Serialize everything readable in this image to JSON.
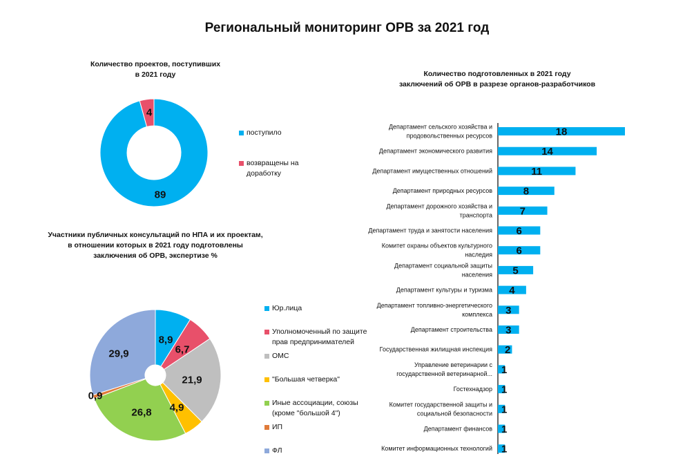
{
  "title": "Региональный мониторинг  ОРВ  за 2021 год",
  "chart_data": [
    {
      "type": "pie",
      "title_lines": [
        "Количество  проектов,  поступивших",
        "в 2021 году"
      ],
      "donut": true,
      "labels": [
        "поступило",
        "возвращены на доработку"
      ],
      "legend_lines": [
        [
          "поступило"
        ],
        [
          "возвращены на",
          "доработку"
        ]
      ],
      "values": [
        89,
        4
      ],
      "value_labels": [
        "89",
        "4"
      ],
      "colors": [
        "#00B0F0",
        "#E8506A"
      ],
      "legend": "right"
    },
    {
      "type": "bar",
      "orientation": "horizontal",
      "title_lines": [
        "Количество  подготовленных  в 2021 году",
        "заключений  об ОРВ в разрезе органов-разработчиков"
      ],
      "categories": [
        [
          "Департамент сельского хозяйства и",
          "продовольственных ресурсов"
        ],
        [
          "Департамент экономического развития"
        ],
        [
          "Департамент имущественных отношений"
        ],
        [
          "Департамент природных ресурсов"
        ],
        [
          "Департамент дорожного хозяйства и",
          "транспорта"
        ],
        [
          "Департамент труда и занятости населения"
        ],
        [
          "Комитет охраны объектов культурного",
          "наследия"
        ],
        [
          "Департамент социальной защиты",
          "населения"
        ],
        [
          "Департамент культуры и туризма"
        ],
        [
          "Департамент топливно-энергетического",
          "комплекса"
        ],
        [
          "Департамент строительства"
        ],
        [
          "Государственная жилищная инспекция"
        ],
        [
          "Управление ветеринарии с",
          "государственной ветеринарной..."
        ],
        [
          "Гостехнадзор"
        ],
        [
          "Комитет государственной защиты и",
          "социальной безопасности"
        ],
        [
          "Департамент финансов"
        ],
        [
          "Комитет информационных технологий"
        ]
      ],
      "values": [
        18,
        14,
        11,
        8,
        7,
        6,
        6,
        5,
        4,
        3,
        3,
        2,
        1,
        1,
        1,
        1,
        1
      ],
      "color": "#00B0F0",
      "xlim": [
        0,
        18
      ]
    },
    {
      "type": "pie",
      "title_lines": [
        "Участники  публичных  консультаций  по НПА и их проектам,",
        "в отношении которых  в 2021 году подготовлены",
        "заключения об ОРВ, экспертизе %"
      ],
      "donut": true,
      "labels": [
        "Юр.лица",
        "Уполномоченный по защите прав предпринимателей",
        "ОМС",
        "\"Большая четверка\"",
        "Иные ассоциации, союзы (кроме \"большой 4\")",
        "ИП",
        "ФЛ"
      ],
      "legend_lines": [
        [
          "Юр.лица"
        ],
        [
          "Уполномоченный по защите",
          "прав предпринимателей"
        ],
        [
          "ОМС"
        ],
        [
          "\"Большая четверка\""
        ],
        [
          "Иные ассоциации, союзы",
          "(кроме \"большой 4\")"
        ],
        [
          "ИП"
        ],
        [
          "ФЛ"
        ]
      ],
      "values": [
        8.9,
        6.7,
        21.9,
        4.9,
        26.8,
        0.9,
        29.9
      ],
      "value_labels": [
        "8,9",
        "6,7",
        "21,9",
        "4,9",
        "26,8",
        "0,9",
        "29,9"
      ],
      "colors": [
        "#00B0F0",
        "#E8506A",
        "#BFBFBF",
        "#FFC000",
        "#92D050",
        "#E07B39",
        "#8EA9DB"
      ],
      "legend": "right"
    }
  ]
}
